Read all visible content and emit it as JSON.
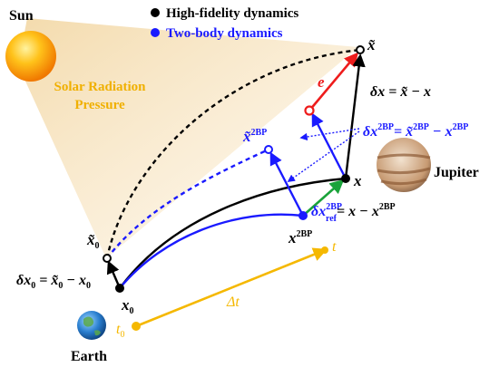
{
  "legend": {
    "items": [
      {
        "label": "High-fidelity dynamics",
        "color": "#000000"
      },
      {
        "label": "Two-body dynamics",
        "color": "#1a1aff"
      }
    ]
  },
  "bodies": {
    "sun": {
      "label": "Sun"
    },
    "earth": {
      "label": "Earth"
    },
    "jupiter": {
      "label": "Jupiter"
    }
  },
  "srp_label_line1": "Solar Radiation",
  "srp_label_line2": "Pressure",
  "colors": {
    "hifi": "#000000",
    "twobody": "#1a1aff",
    "error": "#ee1c1c",
    "ref": "#1aa33a",
    "time": "#f5b800",
    "srp": "#e8c27a"
  },
  "annotations": {
    "x_tilde": "x̃",
    "e": "e",
    "x": "x",
    "x_tilde_2bp": "x̃",
    "x_2bp": "x",
    "x0_tilde": "x̃",
    "x0": "x",
    "t0": "t",
    "t": "t",
    "delta_t": "Δt",
    "sup_2bp": "2BP",
    "sub_0": "0",
    "sub_ref": "ref",
    "eq_dx": "δx = x̃ − x",
    "eq_dx2bp_left": "δx",
    "eq_dx2bp_right": "= x̃",
    "eq_dx2bp_minus": " − x",
    "eq_dxref_right": "= x − x",
    "eq_dx0": "δx",
    "eq_dx0_right": " = x̃",
    "eq_dx0_minus": " − x"
  }
}
